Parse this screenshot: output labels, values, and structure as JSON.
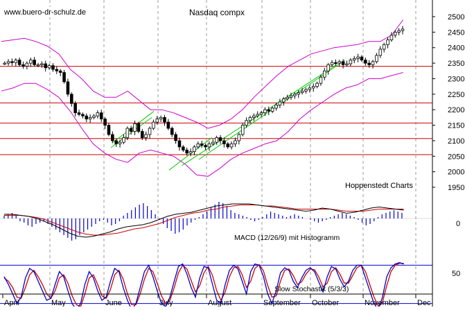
{
  "chart_data": [
    {
      "type": "candlestick",
      "title": "Nasdaq compx",
      "watermark": "www.buero-dr-schulz.de",
      "credit": "Hoppenstedt Charts",
      "ylim": [
        1900,
        2520
      ],
      "yticks": [
        "1950",
        "2000",
        "2050",
        "2100",
        "2150",
        "2200",
        "2250",
        "2300",
        "2350",
        "2400",
        "2450",
        "2500"
      ],
      "months": [
        "April",
        "May",
        "June",
        "July",
        "August",
        "September",
        "October",
        "November",
        "Dec"
      ],
      "horizontal_lines": [
        2340,
        2222,
        2157,
        2107,
        2055
      ],
      "bands_upper": [
        2420,
        2425,
        2430,
        2420,
        2405,
        2380,
        2330,
        2300,
        2260,
        2240,
        2240,
        2260,
        2230,
        2200,
        2200,
        2190,
        2175,
        2160,
        2140,
        2150,
        2170,
        2200,
        2240,
        2275,
        2310,
        2340,
        2360,
        2380,
        2390,
        2400,
        2405,
        2410,
        2420,
        2420,
        2440,
        2490
      ],
      "bands_lower": [
        2260,
        2270,
        2285,
        2285,
        2265,
        2240,
        2195,
        2140,
        2090,
        2060,
        2040,
        2030,
        2060,
        2070,
        2060,
        2050,
        2025,
        1990,
        1985,
        2010,
        2040,
        2060,
        2075,
        2090,
        2100,
        2130,
        2170,
        2200,
        2225,
        2250,
        2270,
        2280,
        2300,
        2300,
        2310,
        2320
      ],
      "closes": [
        2350,
        2355,
        2352,
        2360,
        2345,
        2340,
        2350,
        2360,
        2345,
        2345,
        2348,
        2335,
        2342,
        2330,
        2325,
        2320,
        2290,
        2250,
        2220,
        2190,
        2185,
        2180,
        2170,
        2175,
        2180,
        2190,
        2170,
        2150,
        2120,
        2100,
        2090,
        2095,
        2110,
        2140,
        2130,
        2155,
        2130,
        2110,
        2120,
        2140,
        2160,
        2170,
        2175,
        2160,
        2140,
        2120,
        2100,
        2080,
        2070,
        2060,
        2065,
        2080,
        2090,
        2085,
        2080,
        2090,
        2095,
        2110,
        2100,
        2090,
        2080,
        2090,
        2100,
        2120,
        2150,
        2165,
        2175,
        2180,
        2185,
        2190,
        2200,
        2195,
        2205,
        2215,
        2225,
        2235,
        2240,
        2245,
        2250,
        2255,
        2260,
        2265,
        2270,
        2275,
        2285,
        2305,
        2325,
        2345,
        2352,
        2350,
        2355,
        2345,
        2348,
        2360,
        2365,
        2370,
        2360,
        2350,
        2345,
        2355,
        2375,
        2395,
        2410,
        2425,
        2440,
        2450,
        2455,
        2460
      ],
      "trend_lines": [
        {
          "from": [
            0.255,
            2078
          ],
          "to": [
            0.35,
            2175
          ]
        },
        {
          "from": [
            0.26,
            2095
          ],
          "to": [
            0.355,
            2195
          ]
        },
        {
          "from": [
            0.39,
            2005
          ],
          "to": [
            0.49,
            2110
          ]
        },
        {
          "from": [
            0.42,
            2020
          ],
          "to": [
            0.78,
            2345
          ]
        },
        {
          "from": [
            0.46,
            2040
          ],
          "to": [
            0.8,
            2360
          ]
        }
      ],
      "colors": {
        "candle": "#000000",
        "bands": "#cc00cc",
        "hline": "#cc0000",
        "trend": "#00cc00"
      }
    },
    {
      "type": "histogram",
      "label": "MACD (12/26/9) mit Histogramm",
      "ytick": "0",
      "histogram": [
        2,
        3,
        4,
        2,
        -2,
        -3,
        -5,
        -6,
        -4,
        -3,
        -2,
        -4,
        -6,
        -8,
        -10,
        -12,
        -14,
        -16,
        -15,
        -12,
        -10,
        -8,
        -6,
        -4,
        -2,
        -1,
        -3,
        -5,
        -4,
        -2,
        2,
        4,
        6,
        8,
        10,
        11,
        9,
        6,
        3,
        -1,
        -4,
        -7,
        -9,
        -11,
        -10,
        -8,
        -5,
        -3,
        -1,
        1,
        3,
        5,
        8,
        10,
        12,
        11,
        9,
        6,
        4,
        3,
        2,
        1,
        -1,
        -2,
        -1,
        1,
        3,
        5,
        4,
        3,
        2,
        1,
        2,
        3,
        2,
        1,
        0,
        -1,
        -2,
        -3,
        -2,
        -1,
        1,
        2,
        3,
        4,
        3,
        2,
        1,
        -1,
        -3,
        -5,
        -4,
        -2,
        1,
        3,
        4,
        5,
        6,
        5,
        4
      ],
      "macd": [
        4,
        4,
        3,
        2,
        0,
        -3,
        -6,
        -10,
        -14,
        -17,
        -18,
        -17,
        -15,
        -13,
        -10,
        -8,
        -7,
        -6,
        -4,
        -1,
        2,
        4,
        5,
        6,
        8,
        10,
        12,
        13,
        14,
        14,
        14,
        13,
        12,
        11,
        10,
        9,
        8,
        7,
        8,
        10,
        9,
        7,
        5,
        6,
        8,
        10,
        11,
        10,
        9,
        8
      ],
      "signal": [
        3,
        3,
        3,
        2,
        1,
        -1,
        -4,
        -7,
        -10,
        -13,
        -15,
        -16,
        -16,
        -15,
        -14,
        -12,
        -10,
        -9,
        -7,
        -5,
        -2,
        1,
        3,
        5,
        6,
        8,
        9,
        11,
        12,
        13,
        13,
        13,
        12,
        12,
        11,
        10,
        9,
        9,
        9,
        9,
        9,
        8,
        7,
        7,
        7,
        8,
        9,
        9,
        9,
        9
      ],
      "colors": {
        "histogram": "#0000cc",
        "macd": "#000000",
        "signal": "#cc0000"
      }
    },
    {
      "type": "line",
      "label": "Slow Stochastik (5/3/3)",
      "ytick": "50",
      "k": [
        62,
        50,
        35,
        20,
        30,
        60,
        75,
        70,
        55,
        40,
        25,
        28,
        50,
        70,
        62,
        40,
        20,
        10,
        20,
        50,
        70,
        60,
        40,
        25,
        30,
        55,
        75,
        70,
        45,
        25,
        10,
        20,
        45,
        70,
        80,
        62,
        40,
        20,
        15,
        30,
        55,
        78,
        82,
        66,
        45,
        30,
        60,
        78,
        76,
        50,
        25,
        20,
        50,
        72,
        80,
        74,
        55,
        35,
        70,
        82,
        80,
        62,
        35,
        20,
        40,
        68,
        76,
        72,
        55,
        45,
        60,
        72,
        76,
        70,
        54,
        38,
        62,
        78,
        74,
        58,
        46,
        55,
        72,
        80,
        80,
        60,
        40,
        20,
        10,
        30,
        62,
        76,
        82,
        84,
        82
      ],
      "d": [
        60,
        55,
        45,
        30,
        28,
        45,
        65,
        72,
        62,
        50,
        35,
        28,
        40,
        60,
        65,
        52,
        32,
        18,
        15,
        35,
        60,
        65,
        50,
        32,
        28,
        42,
        65,
        72,
        58,
        35,
        18,
        18,
        35,
        58,
        75,
        70,
        52,
        32,
        20,
        25,
        45,
        68,
        80,
        74,
        56,
        38,
        48,
        68,
        78,
        64,
        40,
        25,
        38,
        62,
        76,
        78,
        65,
        45,
        55,
        75,
        81,
        71,
        48,
        30,
        32,
        55,
        72,
        74,
        64,
        50,
        54,
        66,
        74,
        73,
        62,
        46,
        52,
        70,
        76,
        66,
        52,
        52,
        64,
        76,
        80,
        70,
        50,
        30,
        16,
        22,
        48,
        70,
        80,
        83,
        83
      ],
      "colors": {
        "k": "#0000cc",
        "d": "#cc0000",
        "hline": "#0000cc"
      }
    }
  ]
}
